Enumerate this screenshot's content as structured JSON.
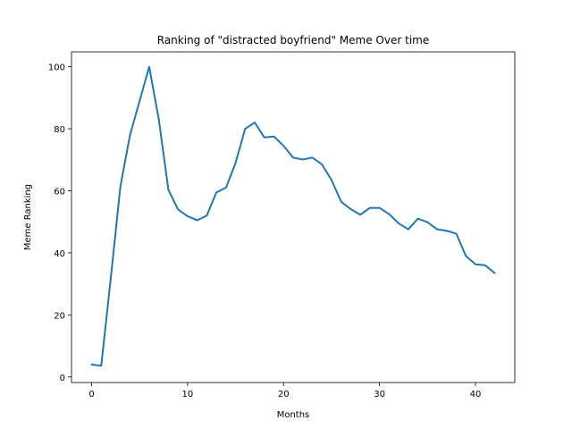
{
  "chart_data": {
    "type": "line",
    "title": "Ranking of \"distracted boyfriend\" Meme Over time",
    "xlabel": "Months",
    "ylabel": "Meme Ranking",
    "xlim": [
      -2.1,
      44.1
    ],
    "ylim": [
      -1.8,
      104.8
    ],
    "xticks": [
      0,
      10,
      20,
      30,
      40
    ],
    "yticks": [
      0,
      20,
      40,
      60,
      80,
      100
    ],
    "grid": false,
    "legend": "none",
    "line_color": "#1f77b4",
    "series": [
      {
        "x": [
          0,
          1,
          2,
          3,
          4,
          5,
          6,
          7,
          8,
          9,
          10,
          11,
          12,
          13,
          14,
          15,
          16,
          17,
          18,
          19,
          20,
          21,
          22,
          23,
          24,
          25,
          26,
          27,
          28,
          29,
          30,
          31,
          32,
          33,
          34,
          35,
          36,
          37,
          38,
          39,
          40,
          41,
          42
        ],
        "values": [
          4,
          3.6,
          32,
          61.5,
          78,
          89,
          100,
          83,
          60.3,
          54,
          51.8,
          50.5,
          52,
          59.5,
          61,
          69,
          80,
          82,
          77.2,
          77.5,
          74.5,
          70.7,
          70.1,
          70.7,
          68.5,
          63.5,
          56.5,
          54.1,
          52.3,
          54.5,
          54.5,
          52.5,
          49.5,
          47.6,
          51,
          49.9,
          47.6,
          47.1,
          46.2,
          39,
          36.3,
          36,
          33.5
        ]
      }
    ]
  }
}
